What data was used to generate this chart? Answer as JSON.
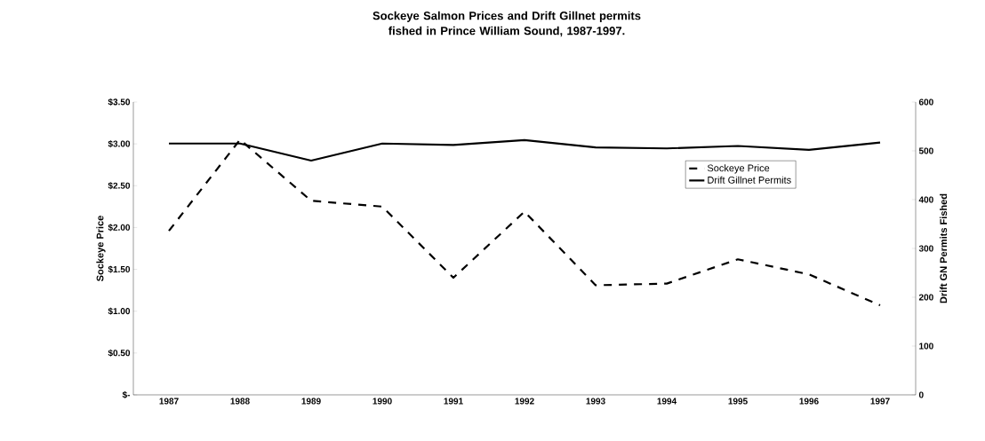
{
  "chart_data": {
    "type": "line",
    "title": "Sockeye Salmon Prices and Drift Gillnet permits fished in Prince William Sound, 1987-1997.",
    "categories": [
      "1987",
      "1988",
      "1989",
      "1990",
      "1991",
      "1992",
      "1993",
      "1994",
      "1995",
      "1996",
      "1997"
    ],
    "ylabel": "Sockeye Price",
    "y2label": "Drift GN Permits Fished",
    "ylim": [
      0,
      3.5
    ],
    "yticks": [
      {
        "value": 0,
        "label": "$-"
      },
      {
        "value": 0.5,
        "label": "$0.50"
      },
      {
        "value": 1,
        "label": "$1.00"
      },
      {
        "value": 1.5,
        "label": "$1.50"
      },
      {
        "value": 2,
        "label": "$2.00"
      },
      {
        "value": 2.5,
        "label": "$2.50"
      },
      {
        "value": 3,
        "label": "$3.00"
      },
      {
        "value": 3.5,
        "label": "$3.50"
      }
    ],
    "y2lim": [
      0,
      600
    ],
    "y2ticks": [
      0,
      100,
      200,
      300,
      400,
      500,
      600
    ],
    "legend": "top right",
    "grid": false,
    "marker": "none",
    "series": [
      {
        "name": "Sockeye Price",
        "color": "#000000",
        "line_style": "dashed",
        "values": [
          1.96,
          3.05,
          2.32,
          2.25,
          1.4,
          2.19,
          1.31,
          1.33,
          1.62,
          1.44,
          1.07
        ]
      },
      {
        "name": "Drift Gillnet Permits",
        "color": "#000000",
        "line_style": "solid",
        "axis": "y2",
        "values": [
          515,
          515,
          480,
          515,
          512,
          522,
          507,
          505,
          510,
          502,
          517
        ]
      }
    ]
  }
}
